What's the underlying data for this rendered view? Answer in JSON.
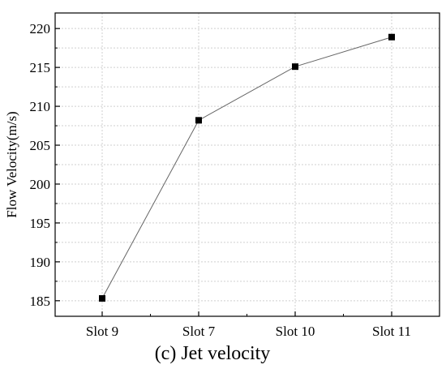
{
  "chart_data": {
    "type": "line",
    "categories": [
      "Slot 9",
      "Slot 7",
      "Slot 10",
      "Slot 11"
    ],
    "values": [
      185.3,
      208.2,
      215.1,
      218.9
    ],
    "title": "",
    "xlabel": "",
    "ylabel": "Flow Velocity(m/s)",
    "ylim": [
      183,
      222
    ],
    "yticks": [
      185,
      190,
      195,
      200,
      205,
      210,
      215,
      220
    ],
    "ytick_labels": [
      "185",
      "190",
      "195",
      "200",
      "205",
      "210",
      "215",
      "220"
    ],
    "grid": true,
    "marker": "square",
    "colors": {
      "line": "#666666",
      "marker": "#000000",
      "grid": "#cfcfcf",
      "axis": "#000000"
    }
  },
  "caption": "(c) Jet velocity"
}
